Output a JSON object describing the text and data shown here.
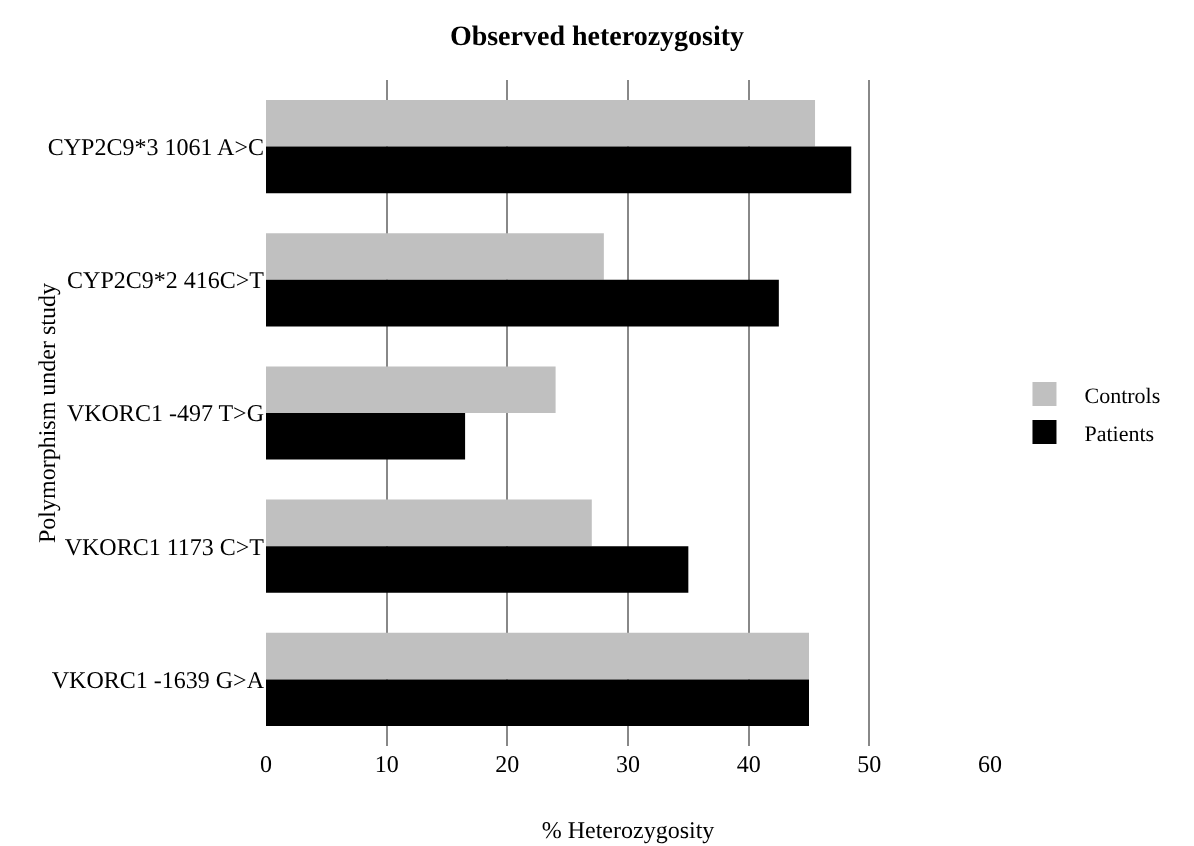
{
  "chart_data": {
    "type": "bar",
    "orientation": "horizontal",
    "title": "Observed heterozygosity",
    "xlabel": "% Heterozygosity",
    "ylabel": "Polymorphism under study",
    "categories": [
      "CYP2C9*3 1061 A>C",
      "CYP2C9*2 416C>T",
      "VKORC1 -497 T>G",
      "VKORC1 1173 C>T",
      "VKORC1 -1639 G>A"
    ],
    "series": [
      {
        "name": "Controls",
        "color": "#c0c0c0",
        "values": [
          45.5,
          28,
          24,
          27,
          45
        ]
      },
      {
        "name": "Patients",
        "color": "#000000",
        "values": [
          48.5,
          42.5,
          16.5,
          35,
          45
        ]
      }
    ],
    "xlim": [
      0,
      60
    ],
    "xticks": [
      0,
      10,
      20,
      30,
      40,
      50,
      60
    ],
    "grid": "x",
    "legend": "right"
  }
}
